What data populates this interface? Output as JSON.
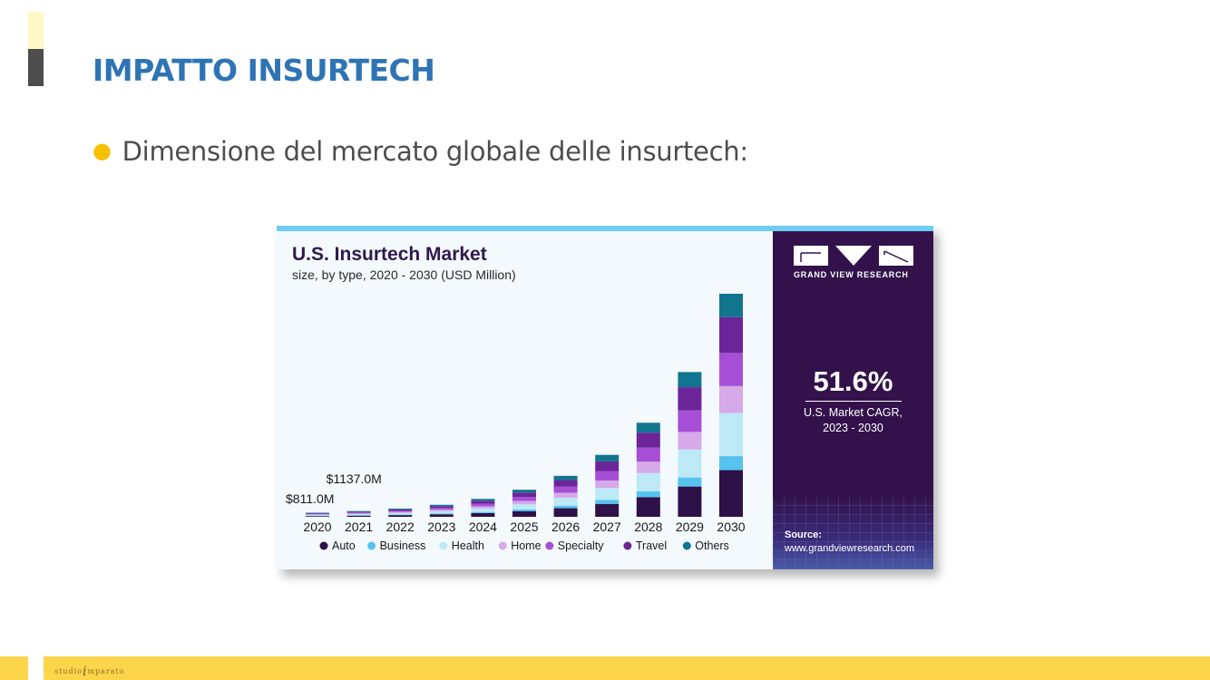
{
  "slide": {
    "title": "IMPATTO INSURTECH",
    "bullet": "Dimensione del mercato globale delle insurtech:",
    "footer_logo_left": "studio",
    "footer_logo_mid": "i",
    "footer_logo_right": "mparato"
  },
  "panel": {
    "brand": "GRAND VIEW RESEARCH",
    "cagr_value": "51.6%",
    "cagr_label_line1": "U.S. Market CAGR,",
    "cagr_label_line2": "2023 - 2030",
    "source_label": "Source:",
    "source_url": "www.grandviewresearch.com"
  },
  "colors": {
    "Auto": "#2d1148",
    "Business": "#55c3ee",
    "Health": "#bde8f6",
    "Home": "#d6a9e8",
    "Specialty": "#a64fd6",
    "Travel": "#6b2598",
    "Others": "#12758f"
  },
  "chart_data": {
    "type": "bar",
    "stacked": true,
    "title": "U.S. Insurtech Market",
    "subtitle": "size, by type, 2020 - 2030 (USD Million)",
    "categories": [
      "2020",
      "2021",
      "2022",
      "2023",
      "2024",
      "2025",
      "2026",
      "2027",
      "2028",
      "2029",
      "2030"
    ],
    "series": [
      {
        "name": "Auto",
        "values": [
          170,
          240,
          340,
          500,
          740,
          1120,
          1700,
          2560,
          3900,
          6000,
          9250
        ]
      },
      {
        "name": "Business",
        "values": [
          50,
          70,
          100,
          150,
          220,
          340,
          510,
          770,
          1170,
          1800,
          2780
        ]
      },
      {
        "name": "Health",
        "values": [
          160,
          220,
          320,
          460,
          690,
          1040,
          1570,
          2380,
          3600,
          5550,
          8550
        ]
      },
      {
        "name": "Home",
        "values": [
          100,
          140,
          200,
          290,
          430,
          650,
          990,
          1490,
          2260,
          3480,
          5350
        ]
      },
      {
        "name": "Specialty",
        "values": [
          120,
          170,
          240,
          350,
          530,
          800,
          1200,
          1820,
          2770,
          4260,
          6550
        ]
      },
      {
        "name": "Travel",
        "values": [
          130,
          180,
          260,
          380,
          570,
          860,
          1300,
          1970,
          2990,
          4600,
          7100
        ]
      },
      {
        "name": "Others",
        "values": [
          81,
          117,
          170,
          250,
          370,
          560,
          850,
          1290,
          1960,
          3010,
          4640
        ]
      }
    ],
    "annotations": [
      {
        "category": "2020",
        "text": "$811.0M"
      },
      {
        "category": "2021",
        "text": "$1137.0M"
      }
    ],
    "legend_position": "bottom",
    "grid": false
  }
}
